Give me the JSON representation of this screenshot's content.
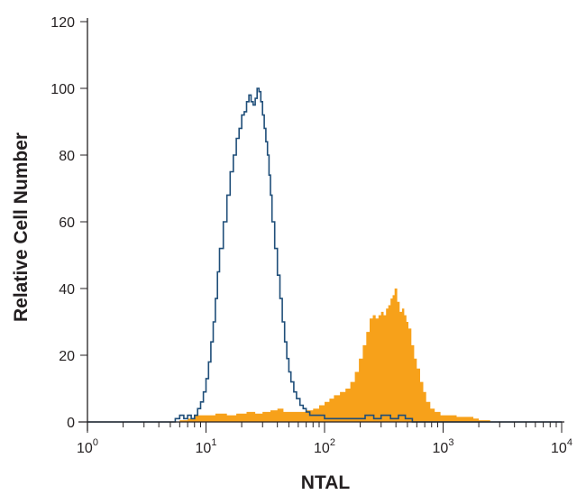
{
  "chart_data": {
    "type": "histogram",
    "xlabel": "NTAL",
    "ylabel": "Relative Cell Number",
    "xscale": "log",
    "xlim": [
      1,
      10000
    ],
    "ylim": [
      0,
      120
    ],
    "x_tick_labels": [
      {
        "base": "10",
        "exp": "0"
      },
      {
        "base": "10",
        "exp": "1"
      },
      {
        "base": "10",
        "exp": "2"
      },
      {
        "base": "10",
        "exp": "3"
      },
      {
        "base": "10",
        "exp": "4"
      }
    ],
    "y_ticks": [
      0,
      20,
      40,
      60,
      80,
      100,
      120
    ],
    "series": [
      {
        "style": "filled",
        "color": "#f7a11a",
        "points": [
          [
            1,
            0
          ],
          [
            5,
            0
          ],
          [
            6,
            0.5
          ],
          [
            7,
            1
          ],
          [
            8,
            2
          ],
          [
            10,
            2
          ],
          [
            12,
            2.5
          ],
          [
            15,
            2
          ],
          [
            18,
            2.5
          ],
          [
            22,
            3
          ],
          [
            26,
            2.5
          ],
          [
            30,
            3
          ],
          [
            35,
            3.5
          ],
          [
            40,
            4
          ],
          [
            45,
            3
          ],
          [
            50,
            3
          ],
          [
            60,
            3
          ],
          [
            70,
            3.5
          ],
          [
            80,
            4
          ],
          [
            90,
            5
          ],
          [
            100,
            6
          ],
          [
            110,
            7
          ],
          [
            120,
            8
          ],
          [
            135,
            9
          ],
          [
            150,
            10
          ],
          [
            165,
            12
          ],
          [
            180,
            15
          ],
          [
            195,
            19
          ],
          [
            210,
            23
          ],
          [
            225,
            27
          ],
          [
            240,
            31
          ],
          [
            255,
            32
          ],
          [
            270,
            31
          ],
          [
            285,
            32
          ],
          [
            300,
            33
          ],
          [
            315,
            32
          ],
          [
            330,
            34
          ],
          [
            345,
            35
          ],
          [
            360,
            37
          ],
          [
            375,
            38
          ],
          [
            390,
            40
          ],
          [
            410,
            36
          ],
          [
            430,
            33
          ],
          [
            450,
            34
          ],
          [
            470,
            32
          ],
          [
            490,
            30
          ],
          [
            510,
            28
          ],
          [
            540,
            23
          ],
          [
            570,
            19
          ],
          [
            600,
            16
          ],
          [
            640,
            12
          ],
          [
            680,
            9
          ],
          [
            720,
            6
          ],
          [
            780,
            4
          ],
          [
            850,
            3
          ],
          [
            950,
            2
          ],
          [
            1100,
            2
          ],
          [
            1300,
            1.5
          ],
          [
            1500,
            1.5
          ],
          [
            1800,
            1
          ],
          [
            2000,
            0.5
          ],
          [
            2500,
            0
          ],
          [
            10000,
            0
          ]
        ]
      },
      {
        "style": "outline",
        "color": "#1f4e79",
        "points": [
          [
            1,
            0
          ],
          [
            4,
            0
          ],
          [
            5,
            0
          ],
          [
            5.5,
            1
          ],
          [
            6,
            2
          ],
          [
            6.5,
            1
          ],
          [
            7,
            2
          ],
          [
            7.5,
            1
          ],
          [
            8,
            2
          ],
          [
            8.5,
            4
          ],
          [
            9,
            6
          ],
          [
            9.5,
            9
          ],
          [
            10,
            13
          ],
          [
            10.5,
            18
          ],
          [
            11,
            24
          ],
          [
            11.5,
            30
          ],
          [
            12,
            37
          ],
          [
            12.5,
            45
          ],
          [
            13,
            52
          ],
          [
            14,
            60
          ],
          [
            15,
            68
          ],
          [
            16,
            75
          ],
          [
            17,
            80
          ],
          [
            18,
            85
          ],
          [
            19,
            88
          ],
          [
            20,
            92
          ],
          [
            21,
            93
          ],
          [
            22,
            96
          ],
          [
            23,
            98
          ],
          [
            24,
            96
          ],
          [
            25,
            95
          ],
          [
            26,
            97
          ],
          [
            27,
            100
          ],
          [
            28,
            99
          ],
          [
            29,
            96
          ],
          [
            30,
            92
          ],
          [
            31,
            88
          ],
          [
            32,
            84
          ],
          [
            33,
            80
          ],
          [
            34,
            74
          ],
          [
            35,
            68
          ],
          [
            36,
            60
          ],
          [
            38,
            52
          ],
          [
            40,
            44
          ],
          [
            42,
            37
          ],
          [
            44,
            30
          ],
          [
            46,
            24
          ],
          [
            48,
            19
          ],
          [
            50,
            15
          ],
          [
            52,
            12
          ],
          [
            55,
            9
          ],
          [
            58,
            7
          ],
          [
            62,
            5
          ],
          [
            66,
            4
          ],
          [
            70,
            3
          ],
          [
            75,
            2
          ],
          [
            80,
            2
          ],
          [
            90,
            2
          ],
          [
            100,
            1
          ],
          [
            120,
            1
          ],
          [
            150,
            1
          ],
          [
            180,
            1
          ],
          [
            220,
            2
          ],
          [
            260,
            1
          ],
          [
            300,
            2
          ],
          [
            360,
            1
          ],
          [
            420,
            2
          ],
          [
            480,
            1
          ],
          [
            550,
            0
          ],
          [
            10000,
            0
          ]
        ]
      }
    ]
  }
}
